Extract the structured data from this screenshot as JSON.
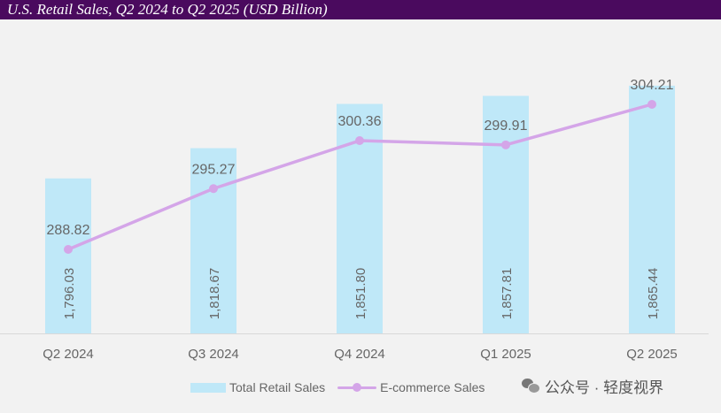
{
  "title": "U.S. Retail Sales, Q2 2024 to Q2 2025 (USD Billion)",
  "colors": {
    "title_background": "#4a0a5e",
    "title_text": "#ffffff",
    "bar": "#bfe8f8",
    "line": "#d4a5e8",
    "label": "#666666",
    "axis": "#d9d9d9"
  },
  "chart_data": {
    "type": "bar+line",
    "categories": [
      "Q2 2024",
      "Q3 2024",
      "Q4 2024",
      "Q1 2025",
      "Q2 2025"
    ],
    "series": [
      {
        "name": "Total Retail Sales",
        "type": "bar",
        "values": [
          1796.03,
          1818.67,
          1851.8,
          1857.81,
          1865.44
        ],
        "labels": [
          "1,796.03",
          "1,818.67",
          "1,851.80",
          "1,857.81",
          "1,865.44"
        ],
        "ylim": [
          1680,
          1870
        ]
      },
      {
        "name": "E-commerce Sales",
        "type": "line",
        "values": [
          288.82,
          295.27,
          300.36,
          299.91,
          304.21
        ],
        "labels": [
          "288.82",
          "295.27",
          "300.36",
          "299.91",
          "304.21"
        ],
        "ylim": [
          275,
          313
        ]
      }
    ],
    "xlabel": "",
    "ylabel": "",
    "grid": false,
    "legend": "bottom"
  },
  "legend": {
    "bar_label": "Total Retail Sales",
    "line_label": "E-commerce Sales"
  },
  "watermark": {
    "text": "公众号 · 轻度视界",
    "icon": "wechat-icon"
  }
}
